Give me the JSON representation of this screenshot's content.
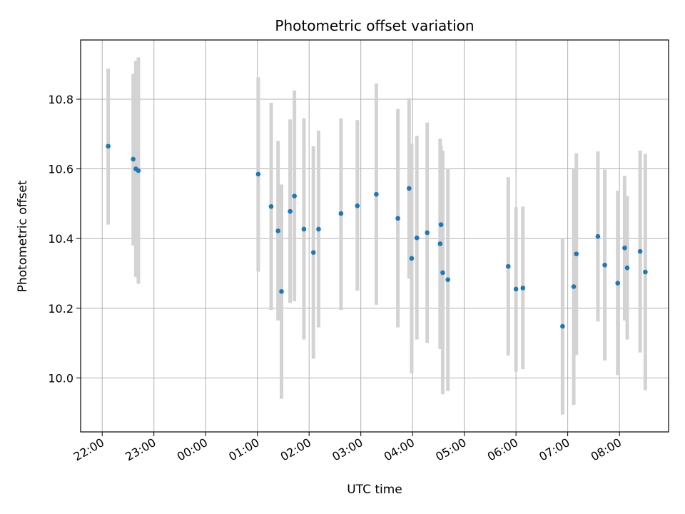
{
  "chart_data": {
    "type": "scatter",
    "title": "Photometric offset variation",
    "xlabel": "UTC time",
    "ylabel": "Photometric offset",
    "x_axis": "time",
    "x_start_time": "21:35",
    "x_end_time": "08:57",
    "x_ticks": [
      "22:00",
      "23:00",
      "00:00",
      "01:00",
      "02:00",
      "03:00",
      "04:00",
      "05:00",
      "06:00",
      "07:00",
      "08:00"
    ],
    "ylim": [
      9.845,
      10.97
    ],
    "y_ticks": [
      "10.0",
      "10.2",
      "10.4",
      "10.6",
      "10.8"
    ],
    "grid": true,
    "marker_color": "#1f77b4",
    "errorbar_color": "#d3d3d3",
    "points": [
      {
        "t": "22:07",
        "y": 10.665,
        "low": 10.44,
        "high": 10.888
      },
      {
        "t": "22:36",
        "y": 10.628,
        "low": 10.38,
        "high": 10.873
      },
      {
        "t": "22:39",
        "y": 10.6,
        "low": 10.29,
        "high": 10.91
      },
      {
        "t": "22:42",
        "y": 10.595,
        "low": 10.27,
        "high": 10.92
      },
      {
        "t": "01:01",
        "y": 10.585,
        "low": 10.305,
        "high": 10.863
      },
      {
        "t": "01:16",
        "y": 10.492,
        "low": 10.195,
        "high": 10.79
      },
      {
        "t": "01:24",
        "y": 10.422,
        "low": 10.165,
        "high": 10.68
      },
      {
        "t": "01:28",
        "y": 10.248,
        "low": 9.94,
        "high": 10.555
      },
      {
        "t": "01:38",
        "y": 10.478,
        "low": 10.215,
        "high": 10.742
      },
      {
        "t": "01:43",
        "y": 10.522,
        "low": 10.22,
        "high": 10.825
      },
      {
        "t": "01:54",
        "y": 10.427,
        "low": 10.11,
        "high": 10.745
      },
      {
        "t": "02:05",
        "y": 10.36,
        "low": 10.055,
        "high": 10.665
      },
      {
        "t": "02:11",
        "y": 10.427,
        "low": 10.145,
        "high": 10.71
      },
      {
        "t": "02:37",
        "y": 10.472,
        "low": 10.195,
        "high": 10.745
      },
      {
        "t": "02:56",
        "y": 10.494,
        "low": 10.25,
        "high": 10.74
      },
      {
        "t": "03:18",
        "y": 10.527,
        "low": 10.21,
        "high": 10.845
      },
      {
        "t": "03:43",
        "y": 10.458,
        "low": 10.145,
        "high": 10.772
      },
      {
        "t": "03:56",
        "y": 10.544,
        "low": 10.285,
        "high": 10.803
      },
      {
        "t": "03:59",
        "y": 10.343,
        "low": 10.013,
        "high": 10.672
      },
      {
        "t": "04:05",
        "y": 10.402,
        "low": 10.11,
        "high": 10.695
      },
      {
        "t": "04:17",
        "y": 10.417,
        "low": 10.1,
        "high": 10.733
      },
      {
        "t": "04:32",
        "y": 10.385,
        "low": 10.083,
        "high": 10.687
      },
      {
        "t": "04:33",
        "y": 10.44,
        "low": 10.213,
        "high": 10.667
      },
      {
        "t": "04:35",
        "y": 10.302,
        "low": 9.953,
        "high": 10.652
      },
      {
        "t": "04:41",
        "y": 10.282,
        "low": 9.962,
        "high": 10.602
      },
      {
        "t": "05:51",
        "y": 10.32,
        "low": 10.064,
        "high": 10.576
      },
      {
        "t": "06:00",
        "y": 10.255,
        "low": 10.018,
        "high": 10.49
      },
      {
        "t": "06:08",
        "y": 10.258,
        "low": 10.025,
        "high": 10.492
      },
      {
        "t": "06:54",
        "y": 10.148,
        "low": 9.895,
        "high": 10.4
      },
      {
        "t": "07:07",
        "y": 10.262,
        "low": 9.922,
        "high": 10.603
      },
      {
        "t": "07:10",
        "y": 10.356,
        "low": 10.066,
        "high": 10.645
      },
      {
        "t": "07:35",
        "y": 10.406,
        "low": 10.162,
        "high": 10.65
      },
      {
        "t": "07:43",
        "y": 10.324,
        "low": 10.05,
        "high": 10.598
      },
      {
        "t": "07:58",
        "y": 10.272,
        "low": 10.008,
        "high": 10.537
      },
      {
        "t": "08:06",
        "y": 10.373,
        "low": 10.165,
        "high": 10.58
      },
      {
        "t": "08:09",
        "y": 10.316,
        "low": 10.11,
        "high": 10.522
      },
      {
        "t": "08:24",
        "y": 10.363,
        "low": 10.073,
        "high": 10.653
      },
      {
        "t": "08:30",
        "y": 10.304,
        "low": 9.965,
        "high": 10.643
      }
    ]
  }
}
